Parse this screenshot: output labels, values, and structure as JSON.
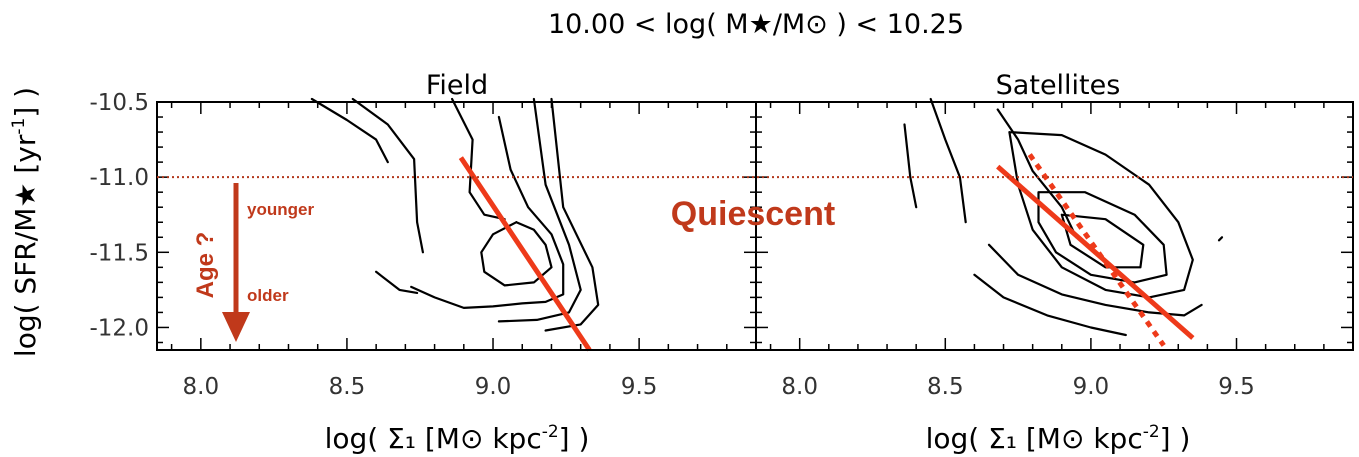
{
  "chart_data": {
    "type": "contour",
    "title": "10.00 < log( M★/M⊙ ) < 10.25",
    "ylabel": {
      "main": "log( SFR/M★ [yr",
      "sup": "-1",
      "end": "] )"
    },
    "xlabel": {
      "main": "log( Σ₁ [M⊙ kpc",
      "sup": "-2",
      "end": "] )"
    },
    "yticks": [
      "-10.5",
      "-11.0",
      "-11.5",
      "-12.0"
    ],
    "ytick_values": [
      -10.5,
      -11.0,
      -11.5,
      -12.0
    ],
    "ylim": [
      -12.15,
      -10.5
    ],
    "xlim": [
      7.85,
      9.9
    ],
    "threshold_y": -11.0,
    "threshold_label": "Quiescent",
    "age_annotation": {
      "label": "Age ?",
      "top": "younger",
      "bottom": "older"
    },
    "colors": {
      "contour": "#000000",
      "fit": "#ee3a1a",
      "threshold": "#b3371c",
      "annotation": "#c0391b"
    },
    "panels": [
      {
        "title": "Field",
        "xticks": [
          "8.0",
          "8.5",
          "9.0",
          "9.5"
        ],
        "xtick_values": [
          8.0,
          8.5,
          9.0,
          9.5
        ],
        "fit_line": [
          [
            8.89,
            -10.87
          ],
          [
            9.33,
            -12.15
          ]
        ],
        "contours": [
          [
            [
              8.38,
              -10.48
            ],
            [
              8.5,
              -10.62
            ],
            [
              8.6,
              -10.75
            ],
            [
              8.64,
              -10.9
            ]
          ],
          [
            [
              8.52,
              -10.48
            ],
            [
              8.64,
              -10.65
            ],
            [
              8.73,
              -10.88
            ],
            [
              8.74,
              -11.3
            ],
            [
              8.76,
              -11.5
            ]
          ],
          [
            [
              8.86,
              -10.48
            ],
            [
              8.93,
              -10.75
            ],
            [
              8.92,
              -11.1
            ],
            [
              8.97,
              -11.25
            ],
            [
              9.04,
              -11.28
            ]
          ],
          [
            [
              9.08,
              -11.3
            ],
            [
              9.14,
              -11.35
            ],
            [
              9.18,
              -11.45
            ],
            [
              9.2,
              -11.6
            ],
            [
              9.14,
              -11.7
            ],
            [
              9.04,
              -11.72
            ],
            [
              8.97,
              -11.63
            ],
            [
              8.96,
              -11.5
            ],
            [
              9.0,
              -11.38
            ],
            [
              9.08,
              -11.3
            ]
          ],
          [
            [
              8.6,
              -11.63
            ],
            [
              8.68,
              -11.75
            ],
            [
              8.74,
              -11.77
            ]
          ],
          [
            [
              8.72,
              -11.73
            ],
            [
              8.8,
              -11.8
            ],
            [
              8.9,
              -11.87
            ],
            [
              9.0,
              -11.86
            ],
            [
              9.1,
              -11.84
            ],
            [
              9.18,
              -11.83
            ],
            [
              9.24,
              -11.78
            ],
            [
              9.24,
              -11.58
            ],
            [
              9.2,
              -11.38
            ],
            [
              9.12,
              -11.2
            ],
            [
              9.06,
              -10.95
            ],
            [
              9.02,
              -10.6
            ]
          ],
          [
            [
              9.02,
              -11.96
            ],
            [
              9.15,
              -11.95
            ],
            [
              9.26,
              -11.9
            ],
            [
              9.3,
              -11.75
            ],
            [
              9.26,
              -11.45
            ],
            [
              9.18,
              -11.05
            ],
            [
              9.14,
              -10.48
            ]
          ],
          [
            [
              9.18,
              -12.02
            ],
            [
              9.3,
              -11.98
            ],
            [
              9.36,
              -11.85
            ],
            [
              9.34,
              -11.6
            ],
            [
              9.24,
              -11.2
            ],
            [
              9.2,
              -10.48
            ]
          ]
        ]
      },
      {
        "title": "Satellites",
        "xticks": [
          "8.0",
          "8.5",
          "9.0",
          "9.5"
        ],
        "xtick_values": [
          8.0,
          8.5,
          9.0,
          9.5
        ],
        "fit_line": [
          [
            8.68,
            -10.93
          ],
          [
            9.35,
            -12.07
          ]
        ],
        "fit_line_dashed": [
          [
            8.79,
            -10.85
          ],
          [
            9.25,
            -12.12
          ]
        ],
        "contours": [
          [
            [
              8.36,
              -10.65
            ],
            [
              8.38,
              -11.0
            ],
            [
              8.4,
              -11.2
            ]
          ],
          [
            [
              8.45,
              -10.48
            ],
            [
              8.5,
              -10.75
            ],
            [
              8.55,
              -11.0
            ],
            [
              8.57,
              -11.3
            ]
          ],
          [
            [
              8.68,
              -10.55
            ],
            [
              8.75,
              -10.75
            ],
            [
              8.8,
              -10.96
            ],
            [
              8.9,
              -11.2
            ],
            [
              8.95,
              -11.4
            ]
          ],
          [
            [
              8.72,
              -10.7
            ],
            [
              8.9,
              -10.72
            ],
            [
              9.05,
              -10.85
            ],
            [
              9.2,
              -11.05
            ],
            [
              9.3,
              -11.3
            ],
            [
              9.35,
              -11.55
            ],
            [
              9.32,
              -11.75
            ],
            [
              9.2,
              -11.8
            ],
            [
              9.05,
              -11.75
            ],
            [
              8.9,
              -11.6
            ],
            [
              8.8,
              -11.35
            ],
            [
              8.75,
              -11.05
            ],
            [
              8.72,
              -10.7
            ]
          ],
          [
            [
              8.82,
              -11.1
            ],
            [
              8.98,
              -11.1
            ],
            [
              9.15,
              -11.25
            ],
            [
              9.25,
              -11.45
            ],
            [
              9.26,
              -11.65
            ],
            [
              9.15,
              -11.7
            ],
            [
              9.0,
              -11.65
            ],
            [
              8.88,
              -11.5
            ],
            [
              8.82,
              -11.3
            ],
            [
              8.82,
              -11.1
            ]
          ],
          [
            [
              8.9,
              -11.25
            ],
            [
              9.05,
              -11.28
            ],
            [
              9.18,
              -11.45
            ],
            [
              9.17,
              -11.6
            ],
            [
              9.05,
              -11.6
            ],
            [
              8.93,
              -11.45
            ],
            [
              8.9,
              -11.25
            ]
          ],
          [
            [
              8.65,
              -11.45
            ],
            [
              8.75,
              -11.65
            ],
            [
              8.9,
              -11.78
            ],
            [
              9.05,
              -11.85
            ],
            [
              9.2,
              -11.9
            ],
            [
              9.32,
              -11.92
            ],
            [
              9.38,
              -11.85
            ]
          ],
          [
            [
              8.6,
              -11.65
            ],
            [
              8.7,
              -11.8
            ],
            [
              8.85,
              -11.92
            ],
            [
              9.0,
              -12.0
            ],
            [
              9.12,
              -12.05
            ]
          ],
          [
            [
              9.45,
              -11.4
            ],
            [
              9.44,
              -11.42
            ]
          ]
        ]
      }
    ]
  }
}
